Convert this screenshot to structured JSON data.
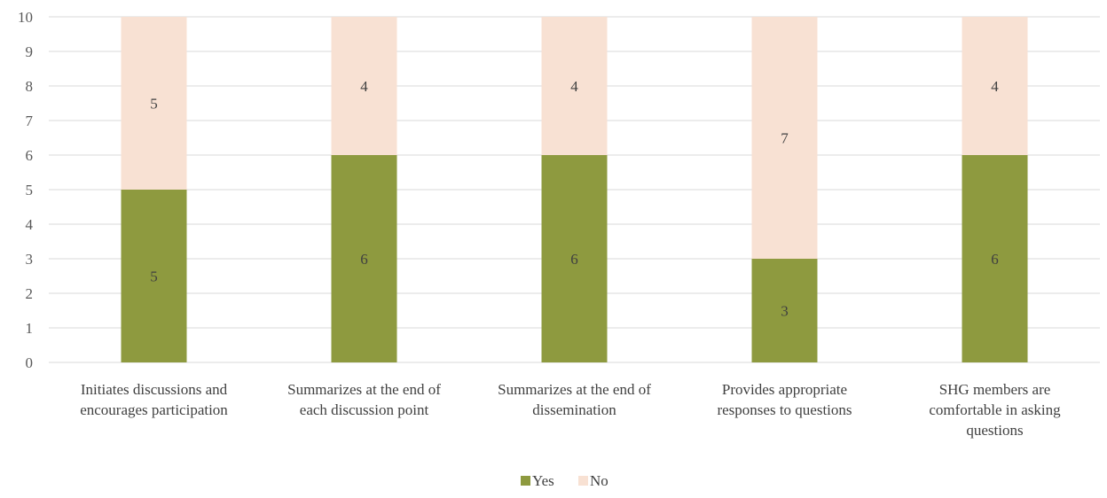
{
  "colors": {
    "yes": "#8E9A3F",
    "no": "#F8E1D3",
    "grid": "#D9D9D9",
    "text": "#404040"
  },
  "chart_data": {
    "type": "bar",
    "stacked": true,
    "categories": [
      [
        "Initiates discussions and",
        "encourages participation"
      ],
      [
        "Summarizes at the end of",
        "each discussion point"
      ],
      [
        "Summarizes at the end of",
        "dissemination"
      ],
      [
        "Provides appropriate",
        "responses to questions"
      ],
      [
        "SHG members are",
        "comfortable in asking",
        "questions"
      ]
    ],
    "series": [
      {
        "name": "Yes",
        "values": [
          5,
          6,
          6,
          3,
          6
        ]
      },
      {
        "name": "No",
        "values": [
          5,
          4,
          4,
          7,
          4
        ]
      }
    ],
    "ylim": [
      0,
      10
    ],
    "yticks": [
      0,
      1,
      2,
      3,
      4,
      5,
      6,
      7,
      8,
      9,
      10
    ],
    "grid": true,
    "legend": "bottom-center",
    "data_labels": true
  }
}
